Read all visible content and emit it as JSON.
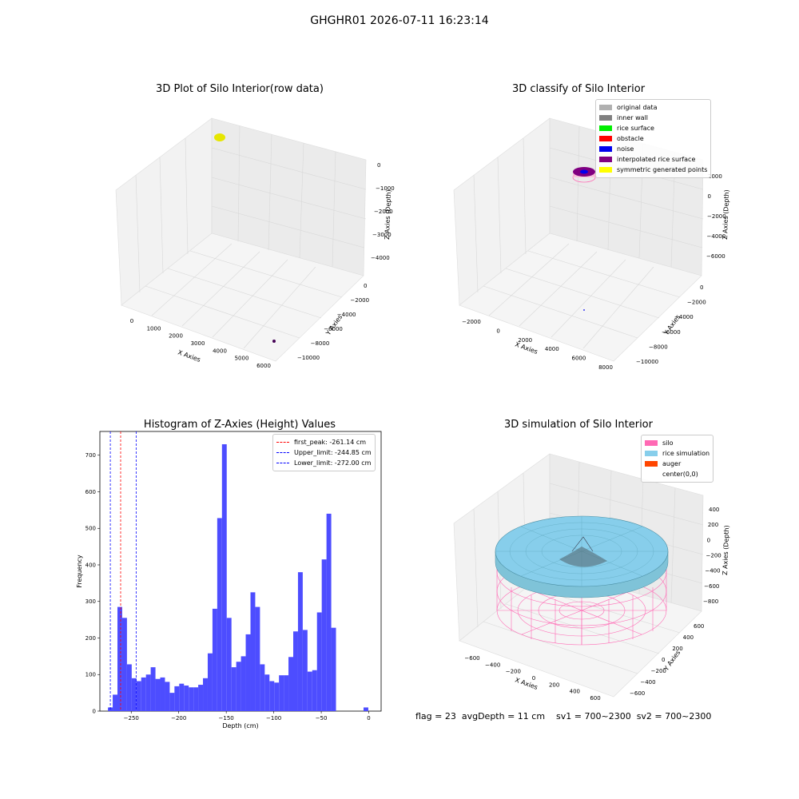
{
  "suptitle": "GHGHR01 2026-07-11 16:23:14",
  "plots": {
    "raw": {
      "title": "3D Plot of Silo Interior(row data)",
      "xlabel": "X Axies",
      "ylabel": "Y Axies",
      "zlabel": "Z Axies (Depth)",
      "xticks": [
        "0",
        "1000",
        "2000",
        "3000",
        "4000",
        "5000",
        "6000"
      ],
      "yticks": [
        "0",
        "−2000",
        "−4000",
        "−6000",
        "−8000",
        "−10000"
      ],
      "zticks": [
        "0",
        "−1000",
        "−2000",
        "−3000",
        "−4000"
      ]
    },
    "classify": {
      "title": "3D classify of Silo Interior",
      "xlabel": "X Axies",
      "ylabel": "Y Axies",
      "zlabel": "Z Axies (Depth)",
      "xticks": [
        "−2000",
        "0",
        "2000",
        "4000",
        "6000",
        "8000"
      ],
      "yticks": [
        "0",
        "−2000",
        "−4000",
        "−6000",
        "−8000",
        "−10000"
      ],
      "zticks": [
        "2000",
        "0",
        "−2000",
        "−4000",
        "−6000"
      ],
      "legend": [
        {
          "label": "original data",
          "color": "#b0b0b0"
        },
        {
          "label": "inner wall",
          "color": "#808080"
        },
        {
          "label": "rice surface",
          "color": "#00ee00"
        },
        {
          "label": "obstacle",
          "color": "#ff0000"
        },
        {
          "label": "noise",
          "color": "#0000ee"
        },
        {
          "label": "interpolated rice surface",
          "color": "#800080"
        },
        {
          "label": "symmetric generated points",
          "color": "#ffff00"
        }
      ]
    },
    "simulation": {
      "title": "3D simulation of Silo Interior",
      "xlabel": "X Axies",
      "ylabel": "Y Axies",
      "zlabel": "Z Axies (Depth)",
      "xticks": [
        "−600",
        "−400",
        "−200",
        "0",
        "200",
        "400",
        "600"
      ],
      "yticks": [
        "600",
        "400",
        "200",
        "0",
        "−200",
        "−400",
        "−600"
      ],
      "zticks": [
        "400",
        "200",
        "0",
        "−200",
        "−400",
        "−600",
        "−800"
      ],
      "legend": [
        {
          "label": "silo",
          "color": "#ff69b4"
        },
        {
          "label": "rice simulation",
          "color": "#87ceeb"
        },
        {
          "label": "auger",
          "color": "#ff4500"
        },
        {
          "label": "center(0,0)",
          "color": ""
        }
      ]
    }
  },
  "stats": {
    "text": "flag = 23  avgDepth = 11 cm    sv1 = 700~2300  sv2 = 700~2300"
  },
  "chart_data": [
    {
      "type": "bar",
      "title": "Histogram of Z-Axies (Height) Values",
      "xlabel": "Depth (cm)",
      "ylabel": "Frequency",
      "xlim": [
        -283,
        13
      ],
      "ylim": [
        0,
        765
      ],
      "xticks": [
        -250,
        -200,
        -150,
        -100,
        -50,
        0
      ],
      "yticks": [
        0,
        100,
        200,
        300,
        400,
        500,
        600,
        700
      ],
      "bar_color": "#4d4dff",
      "bins": [
        {
          "x0": -274.5,
          "x1": -269.5,
          "v": 10
        },
        {
          "x0": -269.5,
          "x1": -264.5,
          "v": 45
        },
        {
          "x0": -264.5,
          "x1": -259.5,
          "v": 285
        },
        {
          "x0": -259.5,
          "x1": -254.5,
          "v": 255
        },
        {
          "x0": -254.5,
          "x1": -249.5,
          "v": 128
        },
        {
          "x0": -249.5,
          "x1": -244.5,
          "v": 90
        },
        {
          "x0": -244.5,
          "x1": -239.5,
          "v": 82
        },
        {
          "x0": -239.5,
          "x1": -234.5,
          "v": 92
        },
        {
          "x0": -234.5,
          "x1": -229.5,
          "v": 100
        },
        {
          "x0": -229.5,
          "x1": -224.5,
          "v": 120
        },
        {
          "x0": -224.5,
          "x1": -219.5,
          "v": 88
        },
        {
          "x0": -219.5,
          "x1": -214.5,
          "v": 92
        },
        {
          "x0": -214.5,
          "x1": -209.5,
          "v": 80
        },
        {
          "x0": -209.5,
          "x1": -204.5,
          "v": 50
        },
        {
          "x0": -204.5,
          "x1": -199.5,
          "v": 68
        },
        {
          "x0": -199.5,
          "x1": -194.5,
          "v": 75
        },
        {
          "x0": -194.5,
          "x1": -189.5,
          "v": 70
        },
        {
          "x0": -189.5,
          "x1": -184.5,
          "v": 65
        },
        {
          "x0": -184.5,
          "x1": -179.5,
          "v": 65
        },
        {
          "x0": -179.5,
          "x1": -174.5,
          "v": 72
        },
        {
          "x0": -174.5,
          "x1": -169.5,
          "v": 90
        },
        {
          "x0": -169.5,
          "x1": -164.5,
          "v": 158
        },
        {
          "x0": -164.5,
          "x1": -159.5,
          "v": 280
        },
        {
          "x0": -159.5,
          "x1": -154.5,
          "v": 528
        },
        {
          "x0": -154.5,
          "x1": -149.5,
          "v": 730
        },
        {
          "x0": -149.5,
          "x1": -144.5,
          "v": 255
        },
        {
          "x0": -144.5,
          "x1": -139.5,
          "v": 120
        },
        {
          "x0": -139.5,
          "x1": -134.5,
          "v": 135
        },
        {
          "x0": -134.5,
          "x1": -129.5,
          "v": 150
        },
        {
          "x0": -129.5,
          "x1": -124.5,
          "v": 210
        },
        {
          "x0": -124.5,
          "x1": -119.5,
          "v": 325
        },
        {
          "x0": -119.5,
          "x1": -114.5,
          "v": 285
        },
        {
          "x0": -114.5,
          "x1": -109.5,
          "v": 128
        },
        {
          "x0": -109.5,
          "x1": -104.5,
          "v": 100
        },
        {
          "x0": -104.5,
          "x1": -99.5,
          "v": 82
        },
        {
          "x0": -99.5,
          "x1": -94.5,
          "v": 78
        },
        {
          "x0": -94.5,
          "x1": -89.5,
          "v": 98
        },
        {
          "x0": -89.5,
          "x1": -84.5,
          "v": 98
        },
        {
          "x0": -84.5,
          "x1": -79.5,
          "v": 148
        },
        {
          "x0": -79.5,
          "x1": -74.5,
          "v": 218
        },
        {
          "x0": -74.5,
          "x1": -69.5,
          "v": 380
        },
        {
          "x0": -69.5,
          "x1": -64.5,
          "v": 222
        },
        {
          "x0": -64.5,
          "x1": -59.5,
          "v": 108
        },
        {
          "x0": -59.5,
          "x1": -54.5,
          "v": 112
        },
        {
          "x0": -54.5,
          "x1": -49.5,
          "v": 270
        },
        {
          "x0": -49.5,
          "x1": -44.5,
          "v": 415
        },
        {
          "x0": -44.5,
          "x1": -39.5,
          "v": 540
        },
        {
          "x0": -39.5,
          "x1": -34.5,
          "v": 228
        },
        {
          "x0": -5.5,
          "x1": -0.5,
          "v": 10
        }
      ],
      "vlines": [
        {
          "x": -261.14,
          "color": "#ff0000",
          "label": "first_peak: -261.14 cm"
        },
        {
          "x": -244.85,
          "color": "#0000ff",
          "label": "Upper_limit: -244.85 cm"
        },
        {
          "x": -272.0,
          "color": "#0000ff",
          "label": "Lower_limit: -272.00 cm"
        }
      ],
      "legend_position": "upper-right"
    }
  ]
}
